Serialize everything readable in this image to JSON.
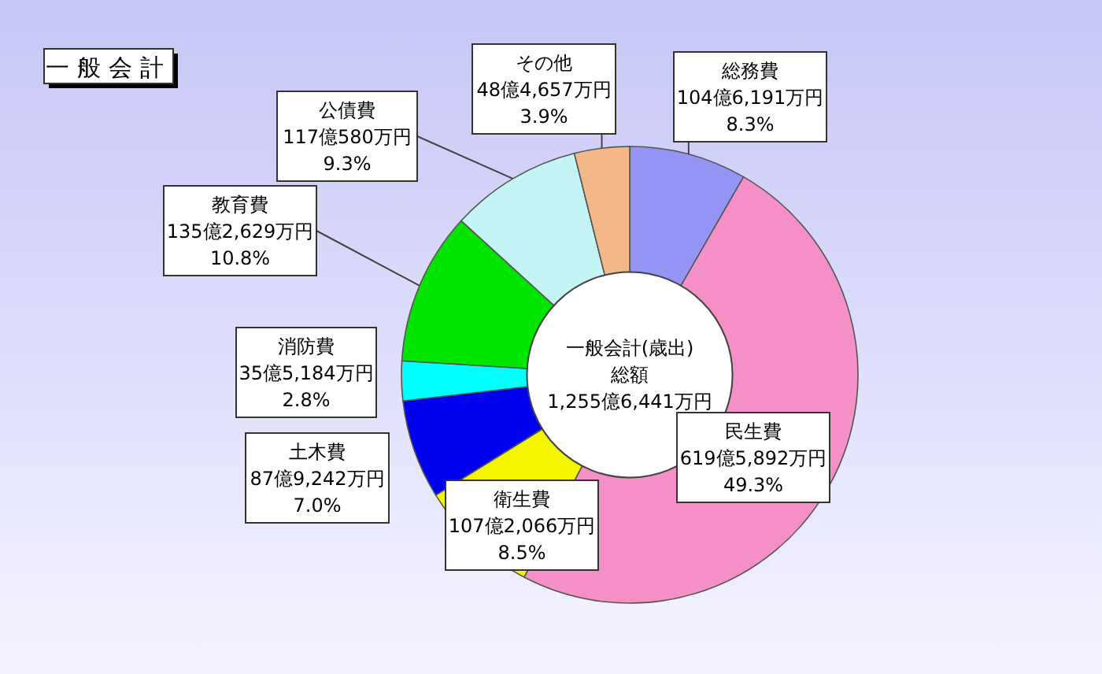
{
  "chart_data": {
    "type": "donut",
    "title": "一般会計",
    "categories": [
      "総務費",
      "民生費",
      "衛生費",
      "土木費",
      "消防費",
      "教育費",
      "公債費",
      "その他"
    ],
    "values": [
      8.3,
      49.3,
      8.5,
      7.0,
      2.8,
      10.8,
      9.3,
      3.9
    ],
    "colors": [
      "#9494f4",
      "#f590c6",
      "#f5f500",
      "#0000f0",
      "#00ffff",
      "#00e400",
      "#c4f4f4",
      "#f2b888"
    ],
    "value_labels": [
      "104億6,191万円\n8.3%",
      "619億5,892万円\n49.3%",
      "107億2,066万円\n8.5%",
      "87億9,242万円\n7.0%",
      "35億5,184万円\n2.8%",
      "135億2,629万円\n10.8%",
      "117億580万円\n9.3%",
      "48億4,657万円\n3.9%"
    ],
    "annotations": [
      "一般会計(歳出)\n総額\n1,255億6,441万円"
    ]
  }
}
